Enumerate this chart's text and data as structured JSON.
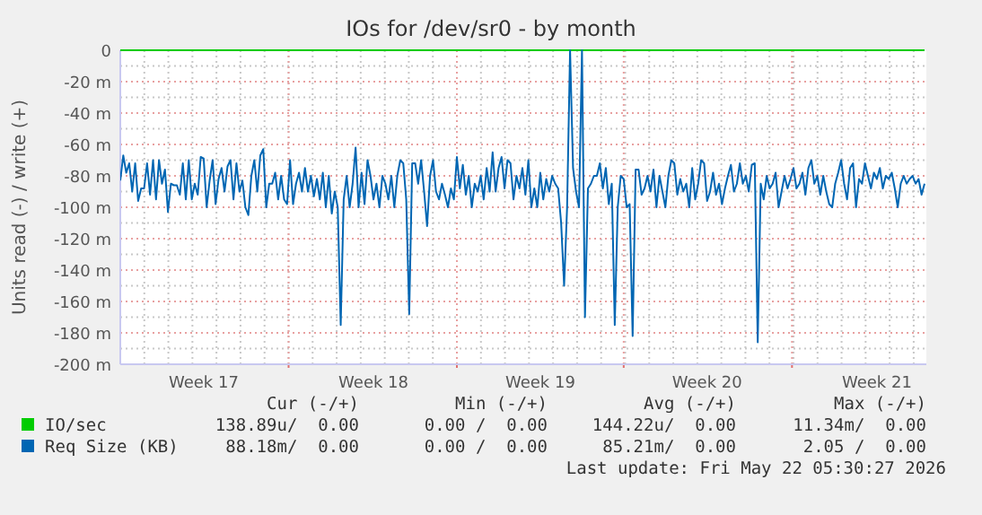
{
  "chart_data": {
    "type": "line",
    "title": "IOs for /dev/sr0 - by month",
    "ylabel": "Units read (-) / write (+)",
    "categories": [
      null,
      null,
      null,
      null,
      null,
      null,
      null,
      null,
      null,
      null,
      null,
      null,
      null,
      null,
      null,
      null,
      null,
      null,
      null,
      null,
      null,
      null,
      null,
      null,
      null,
      null,
      null,
      null,
      "Week 17",
      null,
      null,
      null,
      null,
      null,
      null,
      null,
      null,
      null,
      null,
      null,
      null,
      null,
      null,
      null,
      null,
      null,
      null,
      null,
      null,
      null,
      null,
      null,
      null,
      null,
      null,
      null,
      null,
      null,
      null,
      null,
      null,
      null,
      null,
      null,
      null,
      null,
      null,
      null,
      null,
      null,
      null,
      null,
      null,
      null,
      null,
      null,
      null,
      null,
      null,
      null,
      null,
      null,
      null,
      null,
      null,
      "Week 18",
      null,
      null,
      null,
      null,
      null,
      null,
      null,
      null,
      null,
      null,
      null,
      null,
      null,
      null,
      null,
      null,
      null,
      null,
      null,
      null,
      null,
      null,
      null,
      null,
      null,
      null,
      null,
      null,
      null,
      null,
      null,
      null,
      null,
      null,
      null,
      null,
      null,
      null,
      null,
      null,
      null,
      null,
      null,
      null,
      null,
      null,
      null,
      null,
      null,
      null,
      null,
      null,
      null,
      null,
      null,
      "Week 19",
      null,
      null,
      null,
      null,
      null,
      null,
      null,
      null,
      null,
      null,
      null,
      null,
      null,
      null,
      null,
      null,
      null,
      null,
      null,
      null,
      null,
      null,
      null,
      null,
      null,
      null,
      null,
      null,
      null,
      null,
      null,
      null,
      null,
      null,
      null,
      null,
      null,
      null,
      null,
      null,
      null,
      null,
      null,
      null,
      null,
      null,
      null,
      null,
      null,
      null,
      null,
      null,
      null,
      null,
      null,
      "Week 20",
      null,
      null,
      null,
      null,
      null,
      null,
      null,
      null,
      null,
      null,
      null,
      null,
      null,
      null,
      null,
      null,
      null,
      null,
      null,
      null,
      null,
      null,
      null,
      null,
      null,
      null,
      null,
      null,
      null,
      null,
      null,
      null,
      null,
      null,
      null,
      null,
      null,
      null,
      null,
      null,
      null,
      null,
      null,
      null,
      null,
      null,
      null,
      null,
      null,
      null,
      null,
      null,
      null,
      null,
      null,
      null,
      "Week 21",
      null,
      null,
      null,
      null,
      null,
      null,
      null,
      null,
      null,
      null,
      null,
      null,
      null,
      null,
      null,
      null
    ],
    "ylim": [
      -200,
      0
    ],
    "yticks": [
      0,
      {
        "value": -20,
        "label": "-20 m"
      },
      {
        "value": -40,
        "label": "-40 m"
      },
      {
        "value": -60,
        "label": "-60 m"
      },
      {
        "value": -80,
        "label": "-80 m"
      },
      {
        "value": -100,
        "label": "-100 m"
      },
      {
        "value": -120,
        "label": "-120 m"
      },
      {
        "value": -140,
        "label": "-140 m"
      },
      {
        "value": -160,
        "label": "-160 m"
      },
      {
        "value": -180,
        "label": "-180 m"
      },
      {
        "value": -200,
        "label": "-200 m"
      }
    ],
    "grid": true,
    "legend": "bottom",
    "series": [
      {
        "name": "IO/sec",
        "color": "#00cc00",
        "values": [
          0,
          0,
          0,
          0,
          0,
          0,
          0,
          0,
          0,
          0,
          0,
          0,
          0,
          0,
          0,
          0,
          0,
          0,
          0,
          0,
          0,
          0,
          0,
          0,
          0,
          0,
          0,
          0,
          0,
          0,
          0,
          0,
          0,
          0,
          0,
          0,
          0,
          0,
          0,
          0,
          0,
          0,
          0,
          0,
          0,
          0,
          0,
          0,
          0,
          0,
          0,
          0,
          0,
          0,
          0,
          0,
          0,
          0,
          0,
          0,
          0,
          0,
          0,
          0,
          0,
          0,
          0,
          0,
          0,
          0,
          0,
          0,
          0,
          0,
          0,
          0,
          0,
          0,
          0,
          0,
          0,
          0,
          0,
          0,
          0,
          0,
          0,
          0,
          0,
          0,
          0,
          0,
          0,
          0,
          0,
          0,
          0,
          0,
          0,
          0,
          0,
          0,
          0,
          0,
          0,
          0,
          0,
          0,
          0,
          0,
          0,
          0,
          0,
          0,
          0,
          0,
          0,
          0,
          0,
          0,
          0,
          0,
          0,
          0,
          0,
          0,
          0,
          0,
          0,
          0,
          0,
          0,
          0,
          0,
          0,
          0,
          0,
          0,
          0,
          0,
          0,
          0,
          0,
          0,
          0,
          0,
          0,
          0,
          0,
          0,
          0,
          0,
          0,
          0,
          0,
          0,
          0,
          0,
          0,
          0,
          0,
          0,
          0,
          0,
          0,
          0,
          0,
          0,
          0,
          0,
          0,
          0,
          0,
          0,
          0,
          0,
          0,
          0,
          0,
          0,
          0,
          0,
          0,
          0,
          0,
          0,
          0,
          0,
          0,
          0,
          0,
          0,
          0,
          0,
          0,
          0,
          0,
          0,
          0,
          0,
          0,
          0,
          0,
          0,
          0,
          0,
          0,
          0,
          0,
          0,
          0,
          0,
          0,
          0,
          0,
          0,
          0,
          0,
          0,
          0,
          0,
          0,
          0,
          0,
          0,
          0,
          0,
          0,
          0,
          0,
          0,
          0,
          0,
          0,
          0,
          0,
          0,
          0,
          0,
          0,
          0,
          0,
          0,
          0,
          0,
          0,
          0,
          0,
          0,
          0,
          0,
          0,
          0,
          0,
          0,
          0,
          0,
          0,
          0,
          0,
          0,
          0,
          0,
          0,
          0,
          0,
          0,
          0,
          0,
          0,
          0
        ]
      },
      {
        "name": "Req Size (KB)",
        "color": "#0066b3",
        "values": [
          -83,
          -67,
          -78,
          -72,
          -90,
          -72,
          -96,
          -88,
          -88,
          -72,
          -92,
          -70,
          -95,
          -70,
          -85,
          -76,
          -103,
          -85,
          -86,
          -86,
          -92,
          -72,
          -95,
          -70,
          -95,
          -85,
          -92,
          -68,
          -69,
          -100,
          -83,
          -70,
          -98,
          -82,
          -75,
          -90,
          -74,
          -70,
          -95,
          -72,
          -90,
          -83,
          -100,
          -105,
          -80,
          -70,
          -90,
          -67,
          -63,
          -100,
          -85,
          -85,
          -78,
          -95,
          -80,
          -95,
          -98,
          -70,
          -98,
          -85,
          -78,
          -90,
          -75,
          -90,
          -80,
          -93,
          -82,
          -95,
          -78,
          -100,
          -80,
          -104,
          -90,
          -100,
          -175,
          -95,
          -80,
          -100,
          -85,
          -62,
          -100,
          -78,
          -98,
          -70,
          -80,
          -95,
          -85,
          -100,
          -80,
          -85,
          -95,
          -80,
          -100,
          -80,
          -70,
          -72,
          -95,
          -168,
          -72,
          -72,
          -85,
          -70,
          -90,
          -112,
          -80,
          -70,
          -90,
          -95,
          -85,
          -92,
          -100,
          -88,
          -95,
          -68,
          -88,
          -73,
          -92,
          -80,
          -100,
          -85,
          -90,
          -80,
          -95,
          -75,
          -90,
          -65,
          -90,
          -75,
          -68,
          -88,
          -70,
          -72,
          -95,
          -80,
          -88,
          -75,
          -92,
          -70,
          -100,
          -88,
          -100,
          -78,
          -95,
          -82,
          -90,
          -80,
          -85,
          -88,
          -110,
          -150,
          -100,
          0,
          -75,
          -90,
          -100,
          0,
          -170,
          -88,
          -85,
          -80,
          -80,
          -72,
          -88,
          -75,
          -98,
          -85,
          -175,
          -100,
          -80,
          -82,
          -100,
          -98,
          -182,
          -76,
          -76,
          -92,
          -88,
          -80,
          -90,
          -76,
          -100,
          -80,
          -90,
          -100,
          -80,
          -70,
          -72,
          -92,
          -82,
          -90,
          -85,
          -100,
          -75,
          -95,
          -85,
          -70,
          -72,
          -96,
          -90,
          -78,
          -92,
          -85,
          -98,
          -88,
          -80,
          -73,
          -90,
          -85,
          -72,
          -85,
          -80,
          -90,
          -73,
          -72,
          -186,
          -85,
          -95,
          -80,
          -88,
          -85,
          -78,
          -100,
          -90,
          -80,
          -88,
          -82,
          -75,
          -88,
          -85,
          -78,
          -92,
          -75,
          -70,
          -85,
          -80,
          -92,
          -80,
          -90,
          -98,
          -100,
          -85,
          -78,
          -70,
          -85,
          -95,
          -75,
          -72,
          -100,
          -82,
          -85,
          -72,
          -80,
          -88,
          -78,
          -82,
          -75,
          -88,
          -80,
          -82,
          -78,
          -88,
          -100,
          -85,
          -80,
          -85,
          -82,
          -80,
          -85,
          -82,
          -92,
          -85
        ]
      }
    ],
    "annotations": [
      "Cur (-/+)",
      "Min (-/+)",
      "Avg (-/+)",
      "Max (-/+)",
      "138.89u/  0.00",
      "0.00 /  0.00",
      "144.22u/  0.00",
      "11.34m/  0.00",
      "88.18m/  0.00",
      "0.00 /  0.00",
      "85.21m/  0.00",
      "2.05 /  0.00",
      "Last update: Fri May 22 05:30:27 2026"
    ]
  }
}
